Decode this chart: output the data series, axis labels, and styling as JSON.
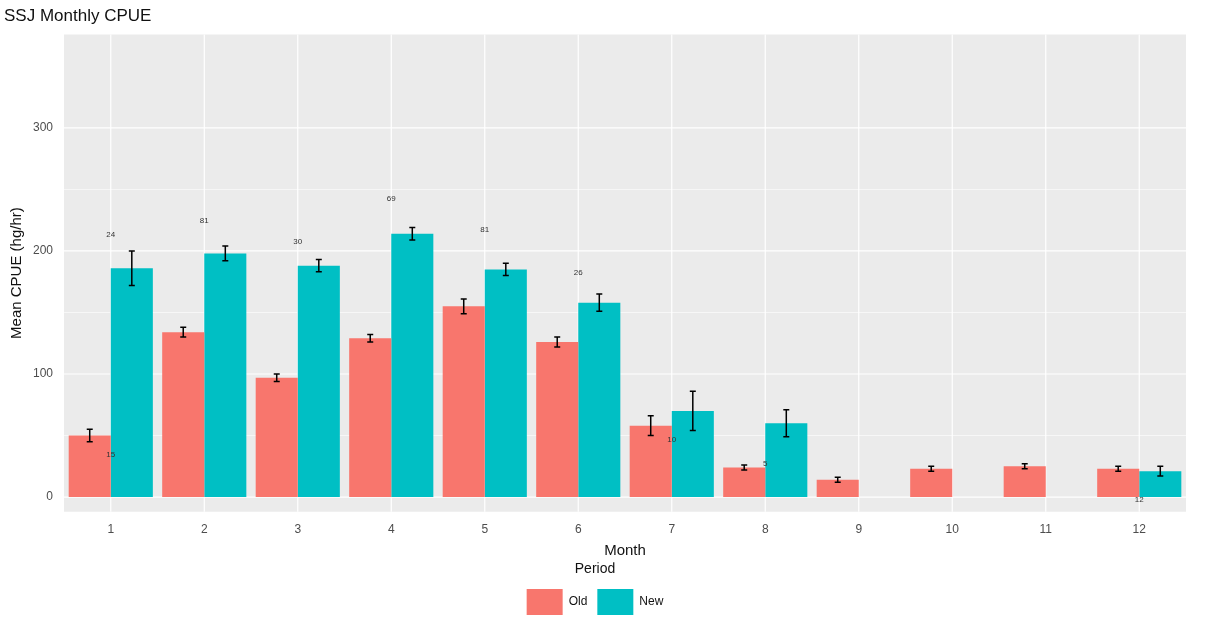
{
  "chart_data": {
    "type": "bar",
    "title": "SSJ Monthly CPUE",
    "xlabel": "Month",
    "ylabel": "Mean CPUE (hg/hr)",
    "legend_title": "Period",
    "categories": [
      "1",
      "2",
      "3",
      "4",
      "5",
      "6",
      "7",
      "8",
      "9",
      "10",
      "11",
      "12"
    ],
    "series": [
      {
        "name": "Old",
        "color": "#f8766d",
        "values": [
          50,
          134,
          97,
          129,
          155,
          126,
          58,
          24,
          14,
          23,
          25,
          23
        ],
        "errors": [
          5,
          4,
          3,
          3,
          6,
          4,
          8,
          2,
          2,
          2,
          2,
          2
        ]
      },
      {
        "name": "New",
        "color": "#00bfc4",
        "values": [
          186,
          198,
          188,
          214,
          185,
          158,
          70,
          60,
          null,
          null,
          null,
          21
        ],
        "errors": [
          14,
          6,
          5,
          5,
          5,
          7,
          16,
          11,
          null,
          null,
          null,
          4
        ]
      }
    ],
    "annotations": [
      "24",
      "15",
      "81",
      "30",
      "69",
      "81",
      "26",
      "10",
      "5",
      "12"
    ],
    "ylim": [
      -12,
      376
    ],
    "yticks": [
      0,
      100,
      200,
      300
    ],
    "grid": true,
    "legend": "bottom"
  }
}
